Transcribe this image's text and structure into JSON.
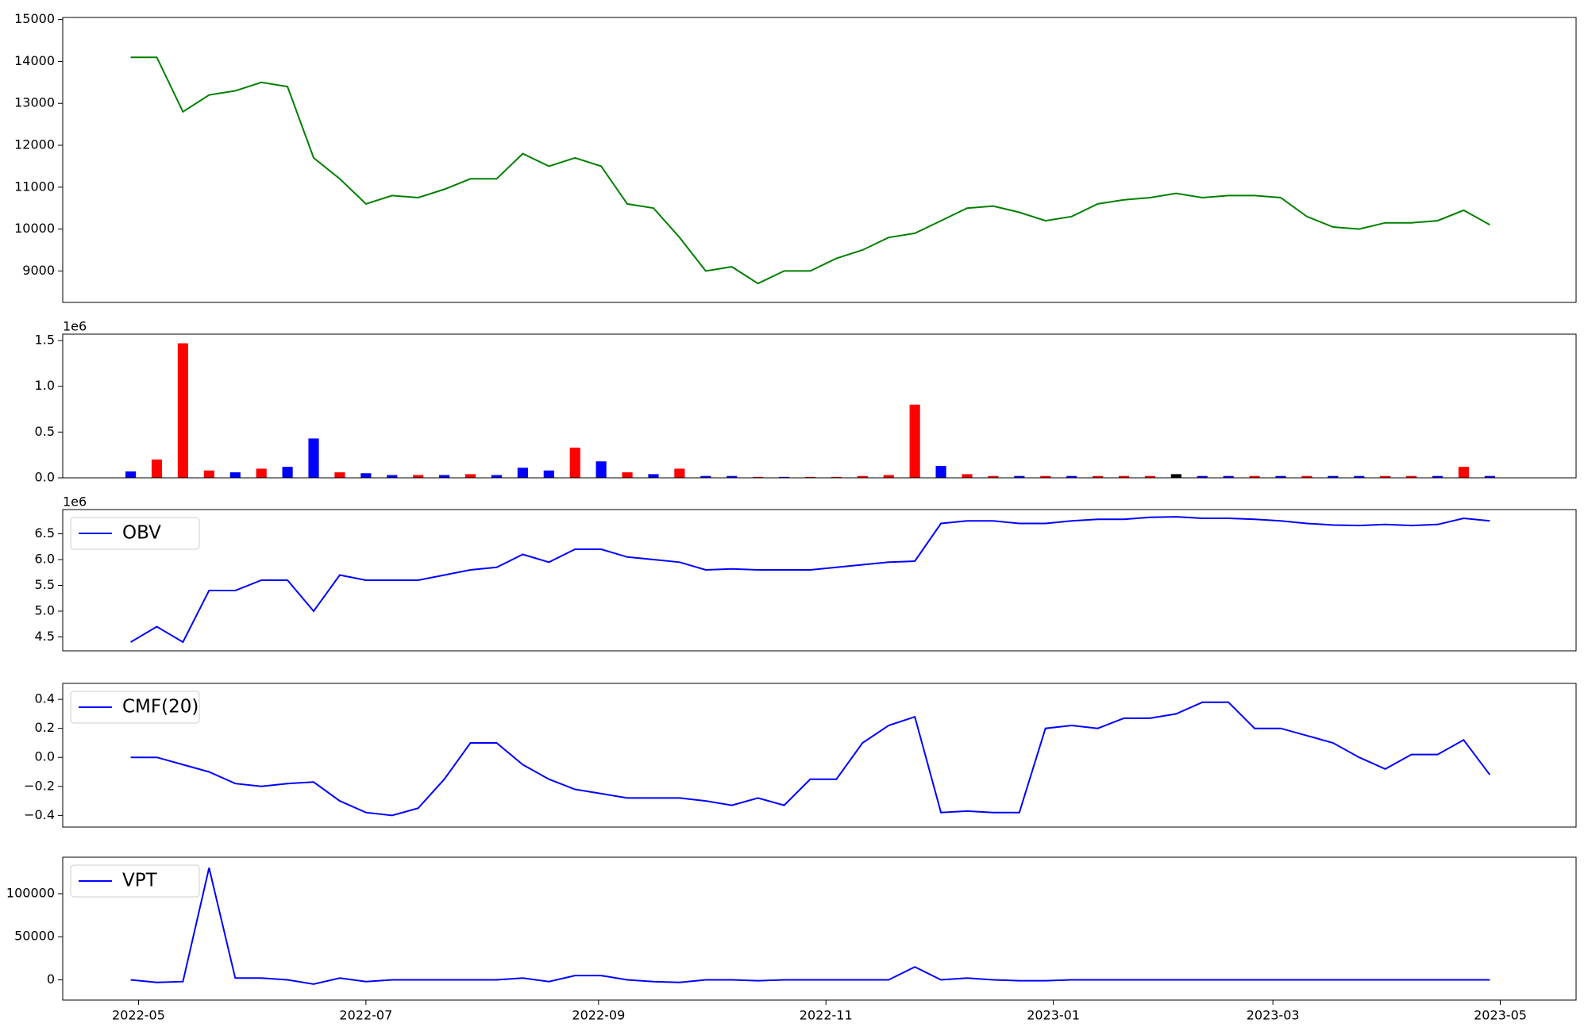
{
  "chart_data": [
    {
      "type": "line",
      "color": "green",
      "values": [
        14100,
        14100,
        12800,
        13200,
        13300,
        13500,
        13400,
        11700,
        11200,
        10600,
        10800,
        10750,
        10950,
        11200,
        11200,
        11800,
        11500,
        11700,
        11500,
        10600,
        10500,
        9800,
        9000,
        9100,
        8700,
        9000,
        9000,
        9300,
        9500,
        9800,
        9900,
        10200,
        10500,
        10550,
        10400,
        10200,
        10300,
        10600,
        10700,
        10750,
        10850,
        10750,
        10800,
        10800,
        10750,
        10300,
        10050,
        10000,
        10150,
        10150,
        10200,
        10450,
        10100
      ],
      "xlim": [
        -2.6,
        55.3
      ],
      "ylim": [
        8250,
        15050
      ],
      "yticks": [
        9000,
        10000,
        11000,
        12000,
        13000,
        14000,
        15000
      ]
    },
    {
      "type": "bar",
      "offset_label": "1e6",
      "values": [
        0.07,
        0.2,
        1.47,
        0.08,
        0.06,
        0.1,
        0.12,
        0.43,
        0.06,
        0.05,
        0.03,
        0.03,
        0.03,
        0.04,
        0.03,
        0.11,
        0.08,
        0.33,
        0.18,
        0.06,
        0.04,
        0.1,
        0.02,
        0.02,
        0.01,
        0.01,
        0.01,
        0.01,
        0.02,
        0.03,
        0.8,
        0.13,
        0.04,
        0.02,
        0.02,
        0.02,
        0.02,
        0.02,
        0.02,
        0.02,
        0.04,
        0.02,
        0.02,
        0.02,
        0.02,
        0.02,
        0.02,
        0.02,
        0.02,
        0.02,
        0.02,
        0.12,
        0.02
      ],
      "colors": [
        "blue",
        "red",
        "red",
        "red",
        "blue",
        "red",
        "blue",
        "blue",
        "red",
        "blue",
        "blue",
        "red",
        "blue",
        "red",
        "blue",
        "blue",
        "blue",
        "red",
        "blue",
        "red",
        "blue",
        "red",
        "blue",
        "blue",
        "red",
        "blue",
        "red",
        "red",
        "red",
        "red",
        "red",
        "blue",
        "red",
        "red",
        "blue",
        "red",
        "blue",
        "red",
        "red",
        "red",
        "black",
        "blue",
        "blue",
        "red",
        "blue",
        "red",
        "blue",
        "blue",
        "red",
        "red",
        "blue",
        "red",
        "blue"
      ],
      "xlim": [
        -2.6,
        55.3
      ],
      "ylim": [
        0,
        1.57
      ],
      "yticks": [
        {
          "value": 0,
          "label": "0.0"
        },
        0.5,
        {
          "value": 1,
          "label": "1.0"
        },
        1.5
      ]
    },
    {
      "type": "line",
      "offset_label": "1e6",
      "legend": "upper left",
      "series": [
        {
          "name": "OBV",
          "color": "blue",
          "values": [
            4.4,
            4.7,
            4.4,
            5.4,
            5.4,
            5.6,
            5.6,
            5.0,
            5.7,
            5.6,
            5.6,
            5.6,
            5.7,
            5.8,
            5.85,
            6.1,
            5.95,
            6.2,
            6.2,
            6.05,
            6.0,
            5.95,
            5.8,
            5.82,
            5.8,
            5.8,
            5.8,
            5.85,
            5.9,
            5.95,
            5.97,
            6.7,
            6.75,
            6.75,
            6.7,
            6.7,
            6.75,
            6.78,
            6.78,
            6.82,
            6.83,
            6.8,
            6.8,
            6.78,
            6.75,
            6.7,
            6.67,
            6.66,
            6.68,
            6.66,
            6.68,
            6.8,
            6.75
          ]
        }
      ],
      "xlim": [
        -2.6,
        55.3
      ],
      "ylim": [
        4.23,
        6.97
      ],
      "yticks": [
        4.5,
        {
          "value": 5,
          "label": "5.0"
        },
        5.5,
        {
          "value": 6,
          "label": "6.0"
        },
        6.5
      ]
    },
    {
      "type": "line",
      "legend": "upper left",
      "series": [
        {
          "name": "CMF(20)",
          "color": "blue",
          "values": [
            0.0,
            0.0,
            -0.05,
            -0.1,
            -0.18,
            -0.2,
            -0.18,
            -0.17,
            -0.3,
            -0.38,
            -0.4,
            -0.35,
            -0.15,
            0.1,
            0.1,
            -0.05,
            -0.15,
            -0.22,
            -0.25,
            -0.28,
            -0.28,
            -0.28,
            -0.3,
            -0.33,
            -0.28,
            -0.33,
            -0.15,
            -0.15,
            0.1,
            0.22,
            0.28,
            -0.38,
            -0.37,
            -0.38,
            -0.38,
            0.2,
            0.22,
            0.2,
            0.27,
            0.27,
            0.3,
            0.38,
            0.38,
            0.2,
            0.2,
            0.15,
            0.1,
            0.0,
            -0.08,
            0.02,
            0.02,
            0.12,
            -0.12
          ]
        }
      ],
      "xlim": [
        -2.6,
        55.3
      ],
      "ylim": [
        -0.48,
        0.51
      ],
      "yticks": [
        {
          "value": -0.4,
          "label": "−0.4"
        },
        {
          "value": -0.2,
          "label": "−0.2"
        },
        {
          "value": 0,
          "label": "0.0"
        },
        0.2,
        0.4
      ]
    },
    {
      "type": "line",
      "legend": "upper left",
      "series": [
        {
          "name": "VPT",
          "color": "blue",
          "values": [
            0,
            -3000,
            -2000,
            130000,
            2000,
            2000,
            0,
            -5000,
            2000,
            -2000,
            0,
            0,
            0,
            0,
            0,
            2000,
            -2000,
            5000,
            5000,
            0,
            -2000,
            -3000,
            0,
            0,
            -1000,
            0,
            0,
            0,
            0,
            0,
            15000,
            0,
            2000,
            0,
            -1000,
            -1000,
            0,
            0,
            0,
            0,
            0,
            0,
            0,
            0,
            0,
            0,
            0,
            0,
            0,
            0,
            0,
            0,
            0
          ]
        }
      ],
      "xlim": [
        -2.6,
        55.3
      ],
      "ylim": [
        -23500,
        142350
      ],
      "yticks": [
        0,
        50000,
        100000
      ],
      "xticks": [
        {
          "value": 0.3,
          "label": "2022-05"
        },
        {
          "value": 9,
          "label": "2022-07"
        },
        {
          "value": 17.9,
          "label": "2022-09"
        },
        {
          "value": 26.6,
          "label": "2022-11"
        },
        {
          "value": 35.3,
          "label": "2023-01"
        },
        {
          "value": 43.7,
          "label": "2023-03"
        },
        {
          "value": 52.4,
          "label": "2023-05"
        }
      ]
    }
  ]
}
